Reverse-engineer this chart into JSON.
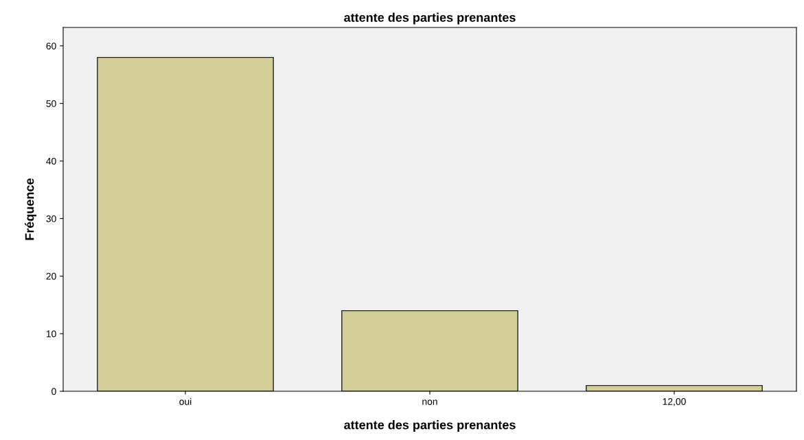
{
  "chart_data": {
    "type": "bar",
    "title": "attente des parties prenantes",
    "xlabel": "attente des parties prenantes",
    "ylabel": "Fréquence",
    "categories": [
      "oui",
      "non",
      "12,00"
    ],
    "values": [
      58,
      14,
      1
    ],
    "color": "#d3ce97",
    "ylim": [
      0,
      63.2
    ],
    "yticks": [
      0,
      10,
      20,
      30,
      40,
      50,
      60
    ],
    "grid": false
  }
}
